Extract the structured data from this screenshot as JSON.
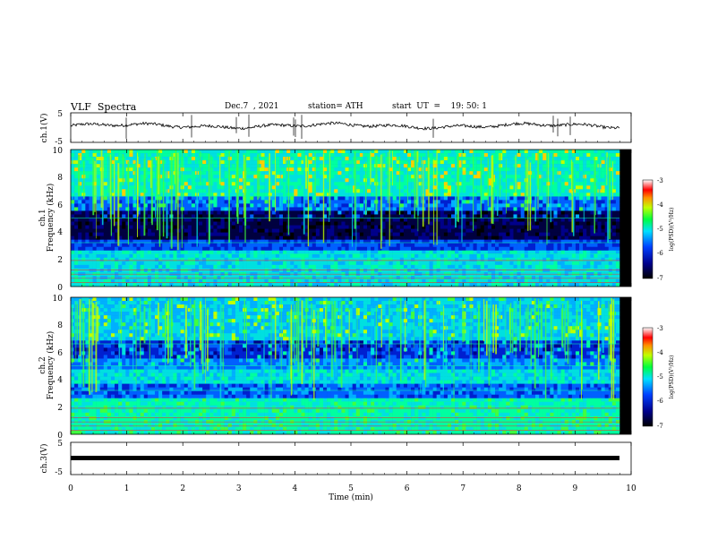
{
  "header": {
    "title": "VLF  Spectra",
    "date": "Dec.7  , 2021",
    "station": "station= ATH",
    "start": "start  UT  =    19: 50: 1"
  },
  "chart_data": [
    {
      "type": "line",
      "ylabel": "ch.1(V)",
      "ylim": [
        -5,
        5
      ],
      "ytick_labels": [
        "5",
        "-5"
      ],
      "xlim": [
        0,
        10
      ],
      "description_series": "waveform near 0.5 V",
      "color": "#000000"
    },
    {
      "type": "heatmap",
      "ylabel_channel": "ch.1",
      "ylabel": "Frequency  (kHz)",
      "ylim": [
        0,
        10
      ],
      "ytick_labels": [
        "10",
        "8",
        "6",
        "4",
        "2",
        "0"
      ],
      "xlim": [
        0,
        10
      ],
      "colorbar": {
        "label": "log(PSD)(V²/Hz)",
        "range": [
          -7,
          -3
        ],
        "tick_labels": [
          "-3",
          "-4",
          "-5",
          "-6",
          "-7"
        ]
      }
    },
    {
      "type": "heatmap",
      "ylabel_channel": "ch.2",
      "ylabel": "Frequency  (kHz)",
      "ylim": [
        0,
        10
      ],
      "ytick_labels": [
        "10",
        "8",
        "6",
        "4",
        "2",
        "0"
      ],
      "xlim": [
        0,
        10
      ],
      "colorbar": {
        "label": "log(PSD)(V²/Hz)",
        "range": [
          -7,
          -3
        ],
        "tick_labels": [
          "-3",
          "-4",
          "-5",
          "-6",
          "-7"
        ]
      }
    },
    {
      "type": "line",
      "ylabel": "ch.3(V)",
      "ylim": [
        -5,
        5
      ],
      "ytick_labels": [
        "5",
        "-5"
      ],
      "xlim": [
        0,
        10
      ],
      "xlabel": "Time  (min)",
      "xtick_labels": [
        "0",
        "1",
        "2",
        "3",
        "4",
        "5",
        "6",
        "7",
        "8",
        "9",
        "10"
      ],
      "color": "#000000"
    }
  ]
}
